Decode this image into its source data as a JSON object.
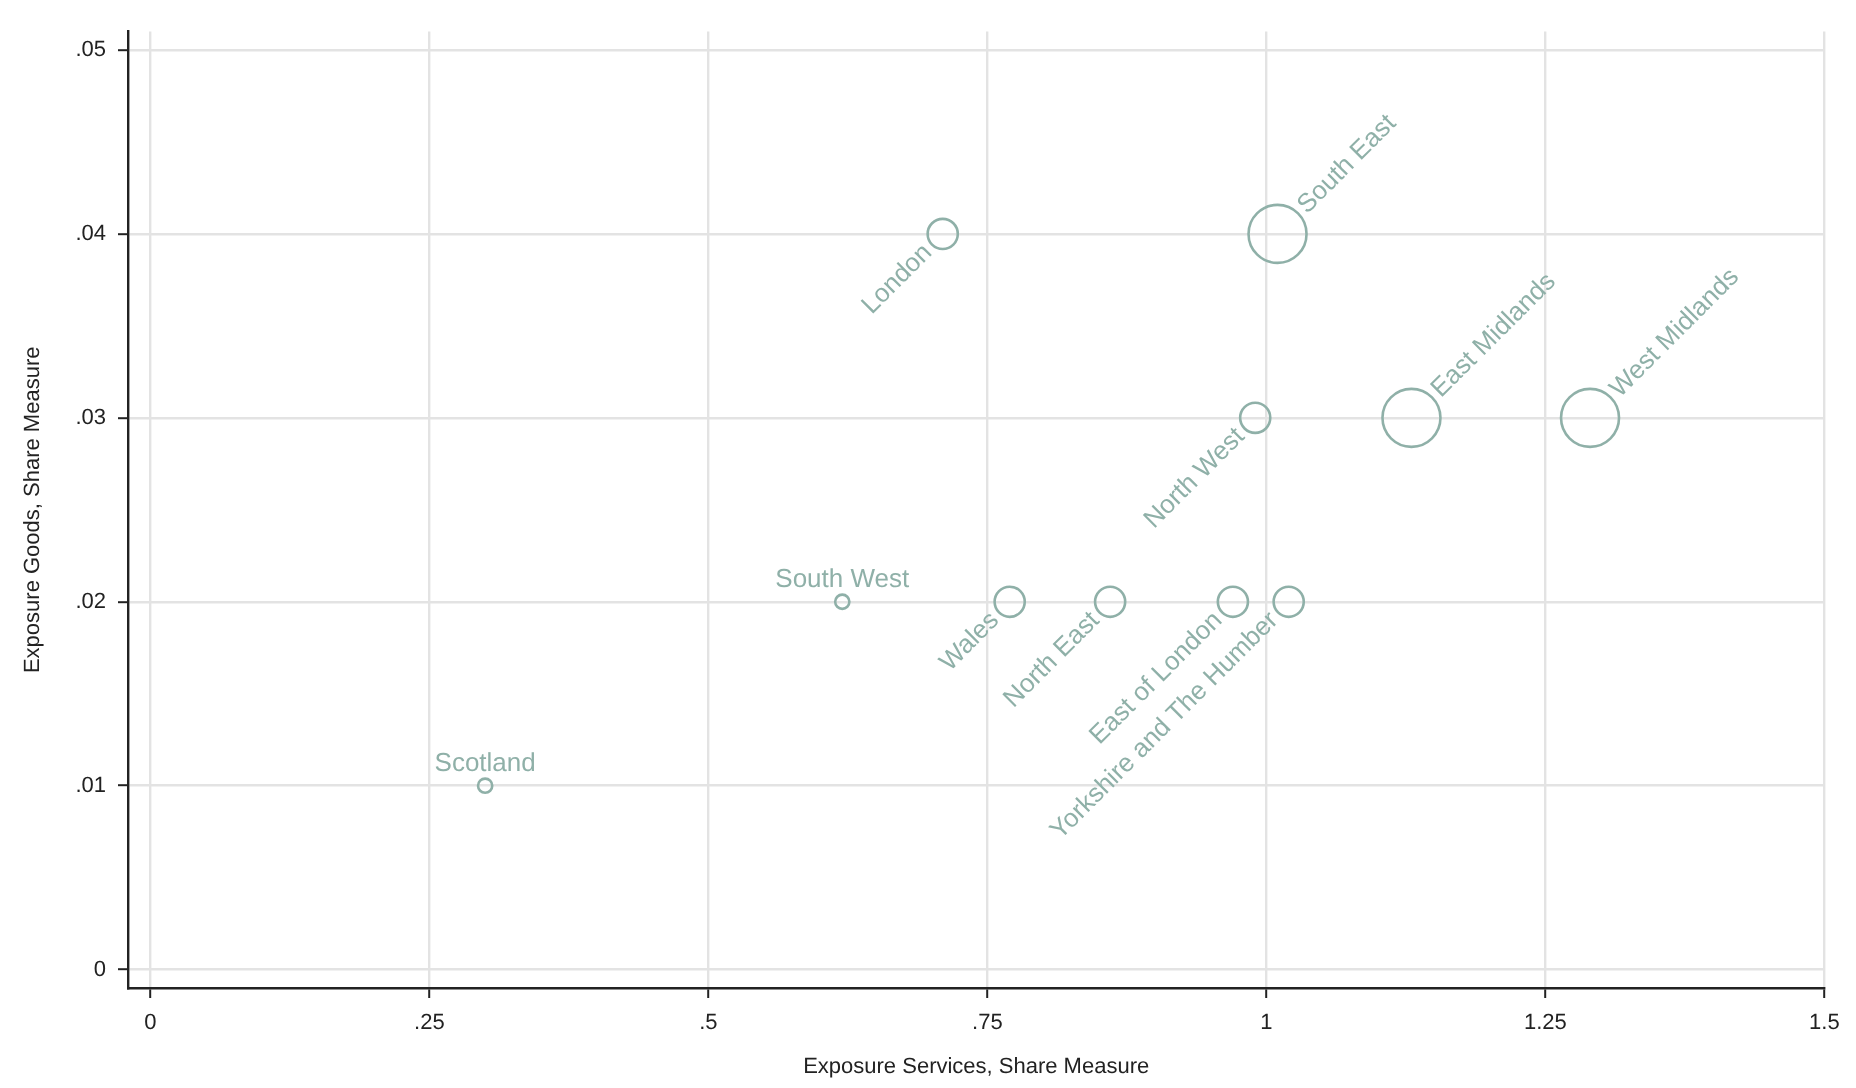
{
  "chart_data": {
    "type": "bubble",
    "xlabel": "Exposure Services, Share Measure",
    "ylabel": "Exposure Goods, Share Measure",
    "x": [
      0.3,
      0.62,
      0.71,
      0.77,
      0.86,
      0.97,
      1.02,
      0.99,
      1.01,
      1.13,
      1.29
    ],
    "values": [
      0.01,
      0.02,
      0.04,
      0.02,
      0.02,
      0.02,
      0.02,
      0.03,
      0.04,
      0.03,
      0.03
    ],
    "sizes": [
      0.06,
      0.06,
      0.27,
      0.27,
      0.27,
      0.27,
      0.27,
      0.27,
      1,
      1,
      1
    ],
    "value_labels": [
      "Scotland",
      "South West",
      "London",
      "Wales",
      "North East",
      "East of London",
      "Yorkshire and The Humber",
      "North West",
      "South East",
      "East Midlands",
      "West Midlands"
    ],
    "color": "#8fb0a8",
    "marker": "circle",
    "xlim": [
      -0.02,
      1.5
    ],
    "ylim": [
      -0.001,
      0.051
    ],
    "xticks": [
      0,
      {
        "value": 0.25,
        "label": ".25"
      },
      {
        "value": 0.5,
        "label": ".5"
      },
      {
        "value": 0.75,
        "label": ".75"
      },
      1,
      1.25,
      1.5
    ],
    "yticks": [
      0,
      {
        "value": 0.01,
        "label": ".01"
      },
      {
        "value": 0.02,
        "label": ".02"
      },
      {
        "value": 0.03,
        "label": ".03"
      },
      {
        "value": 0.04,
        "label": ".04"
      },
      {
        "value": 0.05,
        "label": ".05"
      }
    ],
    "grid": true,
    "legend": false
  }
}
